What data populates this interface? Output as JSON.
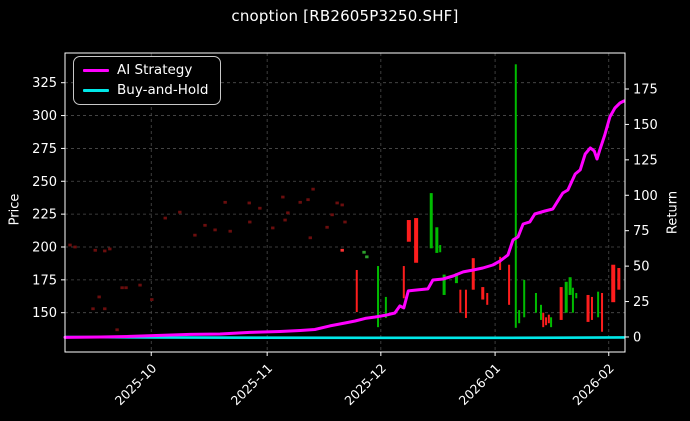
{
  "title": "cnoption [RB2605P3250.SHF]",
  "legend": {
    "items": [
      {
        "label": "AI Strategy",
        "color": "#ff00ff"
      },
      {
        "label": "Buy-and-Hold",
        "color": "#00e8e8"
      }
    ]
  },
  "chart_data": {
    "type": "line",
    "subtype": "candlestick-with-return-lines",
    "title": "cnoption [RB2605P3250.SHF]",
    "background": "#000000",
    "grid": {
      "show": true,
      "color": "#4d4d4d",
      "style": "dashed"
    },
    "x_axis": {
      "label": "",
      "ticks": [
        {
          "label": "2025-10",
          "t": 0.154
        },
        {
          "label": "2025-11",
          "t": 0.361
        },
        {
          "label": "2025-12",
          "t": 0.564
        },
        {
          "label": "2026-01",
          "t": 0.768
        },
        {
          "label": "2026-02",
          "t": 0.971
        }
      ]
    },
    "price_axis": {
      "label": "Price",
      "side": "left",
      "ticks": [
        150,
        175,
        200,
        225,
        250,
        275,
        300,
        325
      ],
      "range": [
        120.1,
        347.6
      ]
    },
    "return_axis": {
      "label": "Return",
      "side": "right",
      "ticks": [
        0,
        25,
        50,
        75,
        100,
        125,
        150,
        175
      ],
      "range": [
        -10.6,
        200.4
      ]
    },
    "series": [
      {
        "name": "AI Strategy",
        "axis": "return",
        "color": "#ff00ff",
        "width": 3,
        "points": [
          [
            0.0,
            -0.3
          ],
          [
            0.063,
            0.0
          ],
          [
            0.116,
            0.4
          ],
          [
            0.17,
            1.1
          ],
          [
            0.223,
            1.8
          ],
          [
            0.277,
            2.1
          ],
          [
            0.33,
            3.2
          ],
          [
            0.384,
            3.9
          ],
          [
            0.42,
            4.6
          ],
          [
            0.446,
            5.3
          ],
          [
            0.473,
            7.8
          ],
          [
            0.5,
            9.9
          ],
          [
            0.518,
            11.3
          ],
          [
            0.536,
            13.1
          ],
          [
            0.554,
            14.1
          ],
          [
            0.571,
            15.2
          ],
          [
            0.589,
            16.9
          ],
          [
            0.598,
            21.9
          ],
          [
            0.605,
            20.5
          ],
          [
            0.613,
            32.5
          ],
          [
            0.63,
            33.2
          ],
          [
            0.648,
            33.9
          ],
          [
            0.657,
            40.2
          ],
          [
            0.675,
            40.9
          ],
          [
            0.693,
            43.0
          ],
          [
            0.711,
            45.9
          ],
          [
            0.729,
            47.3
          ],
          [
            0.746,
            48.7
          ],
          [
            0.764,
            50.8
          ],
          [
            0.777,
            53.6
          ],
          [
            0.791,
            57.9
          ],
          [
            0.8,
            68.5
          ],
          [
            0.809,
            70.6
          ],
          [
            0.818,
            79.7
          ],
          [
            0.83,
            81.2
          ],
          [
            0.839,
            86.8
          ],
          [
            0.857,
            88.9
          ],
          [
            0.871,
            90.3
          ],
          [
            0.88,
            96.0
          ],
          [
            0.889,
            101.6
          ],
          [
            0.898,
            103.7
          ],
          [
            0.911,
            115.0
          ],
          [
            0.92,
            117.9
          ],
          [
            0.929,
            129.1
          ],
          [
            0.938,
            133.4
          ],
          [
            0.945,
            131.3
          ],
          [
            0.95,
            125.6
          ],
          [
            0.955,
            132.0
          ],
          [
            0.964,
            142.6
          ],
          [
            0.973,
            155.3
          ],
          [
            0.982,
            161.6
          ],
          [
            0.991,
            165.1
          ],
          [
            0.998,
            166.5
          ]
        ]
      },
      {
        "name": "Buy-and-Hold",
        "axis": "return",
        "color": "#00e8e8",
        "width": 2.6,
        "points": [
          [
            0.0,
            0.0
          ],
          [
            0.15,
            -0.3
          ],
          [
            0.35,
            -0.5
          ],
          [
            0.55,
            -0.6
          ],
          [
            0.75,
            -0.6
          ],
          [
            0.88,
            -0.5
          ],
          [
            0.998,
            -0.3
          ]
        ]
      }
    ],
    "candles": [
      {
        "t": 0.521,
        "hi": 182.5,
        "lo": 150.5,
        "c": "r",
        "w": 2
      },
      {
        "t": 0.559,
        "hi": 185.5,
        "lo": 139.0,
        "c": "g",
        "w": 2
      },
      {
        "t": 0.573,
        "hi": 162.0,
        "lo": 146.0,
        "c": "g",
        "w": 2
      },
      {
        "t": 0.605,
        "hi": 185.5,
        "lo": 161.0,
        "c": "r",
        "w": 2
      },
      {
        "t": 0.614,
        "hi": 220.5,
        "lo": 204.0,
        "c": "r",
        "w": 4
      },
      {
        "t": 0.627,
        "hi": 222.0,
        "lo": 188.0,
        "c": "r",
        "w": 4
      },
      {
        "t": 0.654,
        "hi": 241.0,
        "lo": 199.0,
        "c": "g",
        "w": 3
      },
      {
        "t": 0.664,
        "hi": 215.0,
        "lo": 195.5,
        "c": "g",
        "w": 3
      },
      {
        "t": 0.67,
        "hi": 201.5,
        "lo": 196.0,
        "c": "g",
        "w": 2
      },
      {
        "t": 0.677,
        "hi": 179.0,
        "lo": 163.5,
        "c": "g",
        "w": 3
      },
      {
        "t": 0.699,
        "hi": 180.0,
        "lo": 172.5,
        "c": "g",
        "w": 3
      },
      {
        "t": 0.706,
        "hi": 167.5,
        "lo": 150.0,
        "c": "r",
        "w": 2
      },
      {
        "t": 0.716,
        "hi": 167.5,
        "lo": 146.0,
        "c": "r",
        "w": 2
      },
      {
        "t": 0.729,
        "hi": 191.5,
        "lo": 167.5,
        "c": "r",
        "w": 3
      },
      {
        "t": 0.746,
        "hi": 169.5,
        "lo": 160.0,
        "c": "r",
        "w": 3
      },
      {
        "t": 0.754,
        "hi": 165.0,
        "lo": 156.0,
        "c": "r",
        "w": 2
      },
      {
        "t": 0.777,
        "hi": 192.5,
        "lo": 182.5,
        "c": "r",
        "w": 2
      },
      {
        "t": 0.793,
        "hi": 186.5,
        "lo": 156.0,
        "c": "r",
        "w": 2
      },
      {
        "t": 0.805,
        "hi": 339.0,
        "lo": 138.5,
        "c": "g",
        "w": 2
      },
      {
        "t": 0.811,
        "hi": 152.0,
        "lo": 142.0,
        "c": "g",
        "w": 2
      },
      {
        "t": 0.82,
        "hi": 175.0,
        "lo": 146.5,
        "c": "g",
        "w": 2
      },
      {
        "t": 0.841,
        "hi": 165.0,
        "lo": 150.0,
        "c": "g",
        "w": 2
      },
      {
        "t": 0.85,
        "hi": 156.0,
        "lo": 144.5,
        "c": "g",
        "w": 2
      },
      {
        "t": 0.854,
        "hi": 150.0,
        "lo": 139.0,
        "c": "r",
        "w": 2
      },
      {
        "t": 0.859,
        "hi": 146.5,
        "lo": 140.5,
        "c": "r",
        "w": 2
      },
      {
        "t": 0.864,
        "hi": 148.5,
        "lo": 142.0,
        "c": "r",
        "w": 2
      },
      {
        "t": 0.868,
        "hi": 146.5,
        "lo": 139.0,
        "c": "g",
        "w": 2
      },
      {
        "t": 0.886,
        "hi": 169.5,
        "lo": 144.5,
        "c": "r",
        "w": 3
      },
      {
        "t": 0.895,
        "hi": 173.5,
        "lo": 150.0,
        "c": "g",
        "w": 3
      },
      {
        "t": 0.902,
        "hi": 177.0,
        "lo": 163.5,
        "c": "g",
        "w": 3
      },
      {
        "t": 0.907,
        "hi": 169.0,
        "lo": 150.0,
        "c": "g",
        "w": 2
      },
      {
        "t": 0.913,
        "hi": 165.0,
        "lo": 161.0,
        "c": "g",
        "w": 2
      },
      {
        "t": 0.934,
        "hi": 163.5,
        "lo": 143.0,
        "c": "r",
        "w": 3
      },
      {
        "t": 0.941,
        "hi": 162.0,
        "lo": 144.5,
        "c": "r",
        "w": 2
      },
      {
        "t": 0.952,
        "hi": 166.0,
        "lo": 146.5,
        "c": "g",
        "w": 2
      },
      {
        "t": 0.959,
        "hi": 165.0,
        "lo": 135.5,
        "c": "r",
        "w": 2
      },
      {
        "t": 0.979,
        "hi": 186.5,
        "lo": 158.0,
        "c": "r",
        "w": 4
      },
      {
        "t": 0.989,
        "hi": 184.0,
        "lo": 167.5,
        "c": "r",
        "w": 3
      }
    ],
    "dots": [
      {
        "t": 0.009,
        "p": 201.5,
        "c": "dim"
      },
      {
        "t": 0.018,
        "p": 200.0,
        "c": "dim"
      },
      {
        "t": 0.054,
        "p": 197.5,
        "c": "dim"
      },
      {
        "t": 0.071,
        "p": 197.0,
        "c": "dim"
      },
      {
        "t": 0.08,
        "p": 198.5,
        "c": "dim"
      },
      {
        "t": 0.05,
        "p": 153.0,
        "c": "dim"
      },
      {
        "t": 0.061,
        "p": 162.0,
        "c": "dim"
      },
      {
        "t": 0.071,
        "p": 153.0,
        "c": "dim"
      },
      {
        "t": 0.093,
        "p": 137.0,
        "c": "dim"
      },
      {
        "t": 0.102,
        "p": 169.0,
        "c": "dim"
      },
      {
        "t": 0.109,
        "p": 169.0,
        "c": "dim"
      },
      {
        "t": 0.134,
        "p": 171.0,
        "c": "dim"
      },
      {
        "t": 0.155,
        "p": 160.0,
        "c": "dim"
      },
      {
        "t": 0.179,
        "p": 222.0,
        "c": "dim"
      },
      {
        "t": 0.205,
        "p": 226.5,
        "c": "dim"
      },
      {
        "t": 0.232,
        "p": 209.0,
        "c": "dim"
      },
      {
        "t": 0.25,
        "p": 216.5,
        "c": "dim"
      },
      {
        "t": 0.268,
        "p": 213.0,
        "c": "dim"
      },
      {
        "t": 0.286,
        "p": 234.0,
        "c": "dim"
      },
      {
        "t": 0.295,
        "p": 212.0,
        "c": "dim"
      },
      {
        "t": 0.329,
        "p": 233.5,
        "c": "dim"
      },
      {
        "t": 0.33,
        "p": 219.0,
        "c": "dim"
      },
      {
        "t": 0.348,
        "p": 229.5,
        "c": "dim"
      },
      {
        "t": 0.371,
        "p": 214.5,
        "c": "dim"
      },
      {
        "t": 0.389,
        "p": 238.0,
        "c": "dim"
      },
      {
        "t": 0.393,
        "p": 220.5,
        "c": "dim"
      },
      {
        "t": 0.398,
        "p": 226.0,
        "c": "dim"
      },
      {
        "t": 0.42,
        "p": 234.0,
        "c": "dim"
      },
      {
        "t": 0.434,
        "p": 236.0,
        "c": "dim"
      },
      {
        "t": 0.438,
        "p": 207.0,
        "c": "dim"
      },
      {
        "t": 0.443,
        "p": 244.0,
        "c": "dim"
      },
      {
        "t": 0.468,
        "p": 215.0,
        "c": "dim"
      },
      {
        "t": 0.477,
        "p": 224.5,
        "c": "dim"
      },
      {
        "t": 0.486,
        "p": 233.5,
        "c": "dim"
      },
      {
        "t": 0.495,
        "p": 232.0,
        "c": "dim"
      },
      {
        "t": 0.5,
        "p": 219.0,
        "c": "dim"
      },
      {
        "t": 0.495,
        "p": 197.5,
        "c": "bright"
      },
      {
        "t": 0.534,
        "p": 196.0,
        "c": "green"
      },
      {
        "t": 0.539,
        "p": 192.5,
        "c": "green"
      }
    ],
    "colors": {
      "up": "#00bb00",
      "down": "#fd1d1d",
      "dot_dim": "#6b0e0e",
      "dot_bright": "#ff3333",
      "dot_green": "#2da02d",
      "spine": "#ffffff",
      "tick_label": "#ffffff"
    }
  }
}
